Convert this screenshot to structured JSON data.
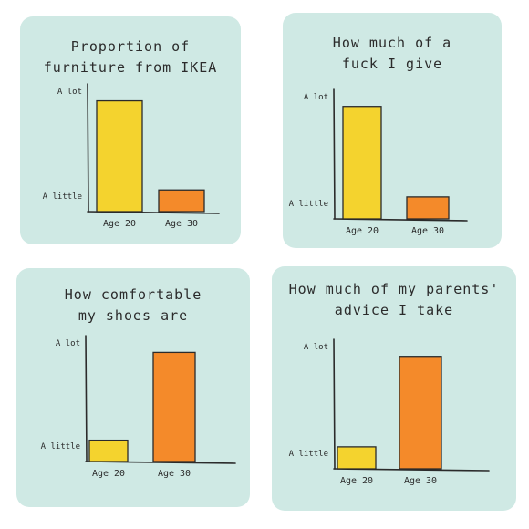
{
  "chart_data": [
    {
      "type": "bar",
      "title": "Proportion of furniture from IKEA",
      "categories": [
        "Age 20",
        "Age 30"
      ],
      "values": [
        0.92,
        0.18
      ],
      "y_tick_labels": [
        "A little",
        "A lot"
      ],
      "colors": [
        "#f4d32e",
        "#f48a2a"
      ],
      "grid": false
    },
    {
      "type": "bar",
      "title": "How much of a fuck I give",
      "categories": [
        "Age 20",
        "Age 30"
      ],
      "values": [
        0.92,
        0.18
      ],
      "y_tick_labels": [
        "A little",
        "A lot"
      ],
      "colors": [
        "#f4d32e",
        "#f48a2a"
      ],
      "grid": false
    },
    {
      "type": "bar",
      "title": "How comfortable my shoes are",
      "categories": [
        "Age 20",
        "Age 30"
      ],
      "values": [
        0.18,
        0.92
      ],
      "y_tick_labels": [
        "A little",
        "A lot"
      ],
      "colors": [
        "#f4d32e",
        "#f48a2a"
      ],
      "grid": false
    },
    {
      "type": "bar",
      "title": "How much of my parents' advice I take",
      "categories": [
        "Age 20",
        "Age 30"
      ],
      "values": [
        0.18,
        0.92
      ],
      "y_tick_labels": [
        "A little",
        "A lot"
      ],
      "colors": [
        "#f4d32e",
        "#f48a2a"
      ],
      "grid": false
    }
  ]
}
